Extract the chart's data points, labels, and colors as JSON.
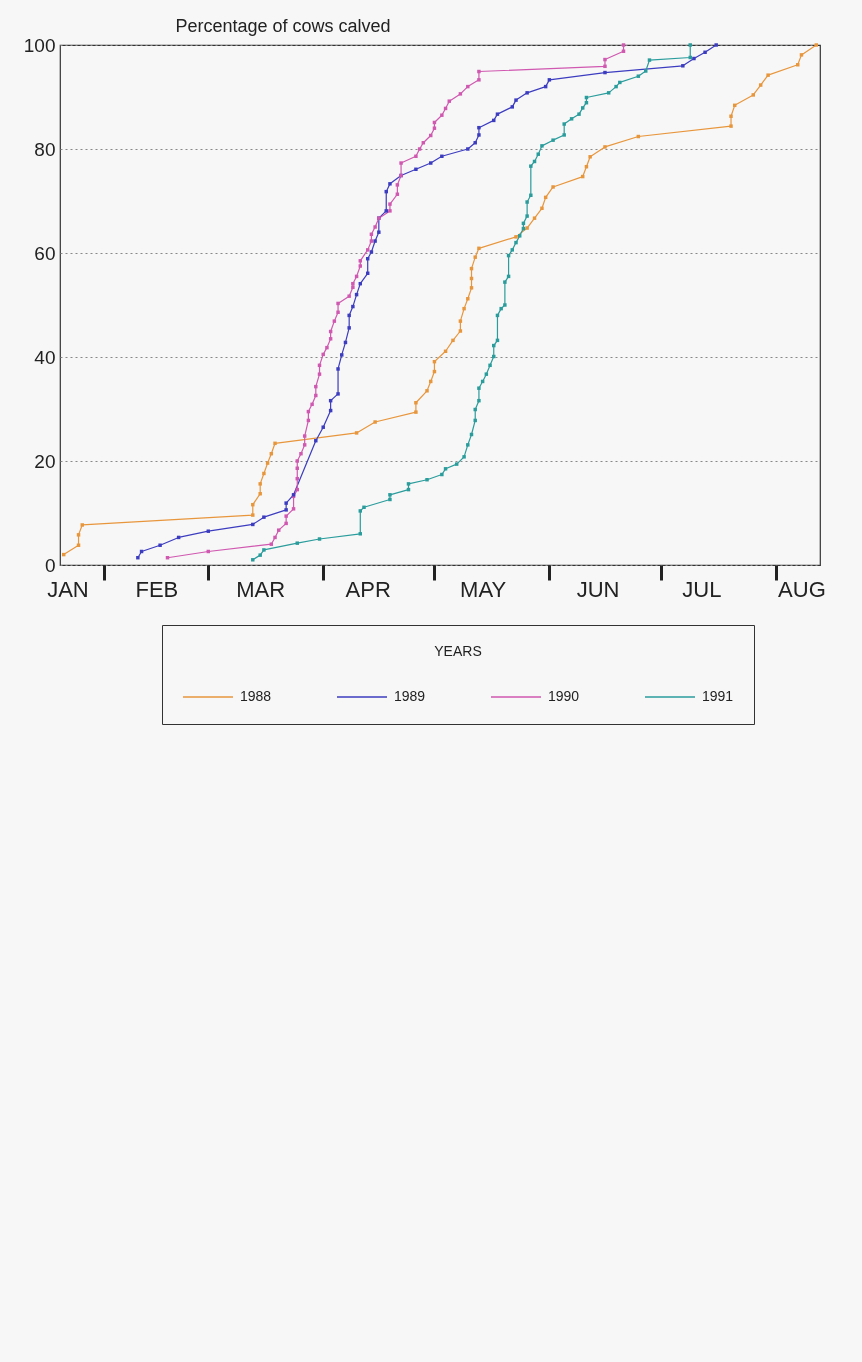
{
  "chart_data": {
    "type": "line",
    "ylabel": "Percentage of cows calved",
    "legend_title": "YEARS",
    "legend": "bottom",
    "grid": "y",
    "marker": "square",
    "line_style": "solid",
    "xlim": [
      "--01-20",
      "--08-13"
    ],
    "xticks": [
      {
        "value": "--01-22",
        "label": "JAN"
      },
      {
        "value": "--02-01",
        "label": null
      },
      {
        "value": "--02-15",
        "label": "FEB"
      },
      {
        "value": "--03-01",
        "label": null
      },
      {
        "value": "--03-15",
        "label": "MAR"
      },
      {
        "value": "--04-01",
        "label": null
      },
      {
        "value": "--04-13",
        "label": "APR"
      },
      {
        "value": "--05-01",
        "label": null
      },
      {
        "value": "--05-14",
        "label": "MAY"
      },
      {
        "value": "--06-01",
        "label": null
      },
      {
        "value": "--06-14",
        "label": "JUN"
      },
      {
        "value": "--07-01",
        "label": null
      },
      {
        "value": "--07-12",
        "label": "JUL"
      },
      {
        "value": "--08-01",
        "label": null
      },
      {
        "value": "--08-08",
        "label": "AUG"
      }
    ],
    "ylim": [
      0,
      100
    ],
    "yticks": [
      0,
      20,
      40,
      60,
      80,
      100
    ],
    "series": [
      {
        "name": "1988",
        "color": "#e8963c",
        "x": [
          "--01-21",
          "--01-25",
          "--01-25",
          "--01-26",
          "--03-13",
          "--03-13",
          "--03-15",
          "--03-15",
          "--03-16",
          "--03-17",
          "--03-18",
          "--03-19",
          "--04-10",
          "--04-15",
          "--04-26",
          "--04-26",
          "--04-29",
          "--04-30",
          "--05-01",
          "--05-01",
          "--05-04",
          "--05-06",
          "--05-08",
          "--05-08",
          "--05-09",
          "--05-10",
          "--05-11",
          "--05-11",
          "--05-11",
          "--05-12",
          "--05-13",
          "--05-23",
          "--05-26",
          "--05-28",
          "--05-30",
          "--05-31",
          "--06-02",
          "--06-10",
          "--06-11",
          "--06-12",
          "--06-16",
          "--06-25",
          "--07-20",
          "--07-20",
          "--07-21",
          "--07-26",
          "--07-28",
          "--07-30",
          "--08-07",
          "--08-08",
          "--08-12"
        ],
        "values": [
          2,
          3.8,
          5.8,
          7.7,
          9.6,
          11.6,
          13.7,
          15.6,
          17.6,
          19.6,
          21.4,
          23.4,
          25.4,
          27.5,
          29.4,
          31.2,
          33.5,
          35.3,
          37.2,
          39.1,
          41.1,
          43.2,
          45,
          46.9,
          49.3,
          51.2,
          53.3,
          55.1,
          57,
          59.2,
          60.9,
          63.1,
          64.8,
          66.7,
          68.6,
          70.7,
          72.7,
          74.7,
          76.6,
          78.5,
          80.4,
          82.4,
          84.4,
          86.3,
          88.4,
          90.4,
          92.3,
          94.2,
          96.2,
          98.1,
          100
        ]
      },
      {
        "name": "1989",
        "color": "#3c3cc0",
        "x": [
          "--02-10",
          "--02-11",
          "--02-16",
          "--02-21",
          "--03-01",
          "--03-13",
          "--03-16",
          "--03-22",
          "--03-22",
          "--03-24",
          "--03-30",
          "--04-01",
          "--04-03",
          "--04-03",
          "--04-05",
          "--04-05",
          "--04-06",
          "--04-07",
          "--04-08",
          "--04-08",
          "--04-09",
          "--04-10",
          "--04-11",
          "--04-13",
          "--04-13",
          "--04-14",
          "--04-15",
          "--04-16",
          "--04-16",
          "--04-18",
          "--04-18",
          "--04-19",
          "--04-22",
          "--04-26",
          "--04-30",
          "--05-03",
          "--05-10",
          "--05-12",
          "--05-13",
          "--05-13",
          "--05-17",
          "--05-18",
          "--05-22",
          "--05-23",
          "--05-26",
          "--05-31",
          "--06-01",
          "--06-16",
          "--07-07",
          "--07-10",
          "--07-13",
          "--07-16"
        ],
        "values": [
          1.4,
          2.6,
          3.8,
          5.3,
          6.5,
          7.8,
          9.2,
          10.6,
          11.9,
          13.5,
          23.9,
          26.5,
          29.7,
          31.6,
          32.9,
          37.7,
          40.4,
          42.8,
          45.6,
          48,
          49.7,
          52,
          54.1,
          56.1,
          58.9,
          60.2,
          62.3,
          64,
          66.7,
          68.1,
          71.8,
          73.3,
          74.9,
          76.1,
          77.3,
          78.6,
          80,
          81.2,
          82.7,
          84.1,
          85.5,
          86.7,
          88.1,
          89.4,
          90.8,
          92,
          93.3,
          94.7,
          96,
          97.4,
          98.6,
          100
        ]
      },
      {
        "name": "1990",
        "color": "#d058b0",
        "x": [
          "--02-18",
          "--03-01",
          "--03-18",
          "--03-19",
          "--03-20",
          "--03-22",
          "--03-22",
          "--03-24",
          "--03-24",
          "--03-25",
          "--03-25",
          "--03-25",
          "--03-25",
          "--03-26",
          "--03-27",
          "--03-27",
          "--03-28",
          "--03-28",
          "--03-29",
          "--03-30",
          "--03-30",
          "--03-31",
          "--03-31",
          "--04-01",
          "--04-02",
          "--04-03",
          "--04-03",
          "--04-04",
          "--04-05",
          "--04-05",
          "--04-08",
          "--04-09",
          "--04-09",
          "--04-10",
          "--04-11",
          "--04-11",
          "--04-13",
          "--04-14",
          "--04-14",
          "--04-15",
          "--04-16",
          "--04-19",
          "--04-19",
          "--04-21",
          "--04-21",
          "--04-22",
          "--04-22",
          "--04-26",
          "--04-27",
          "--04-28",
          "--04-30",
          "--05-01",
          "--05-01",
          "--05-03",
          "--05-04",
          "--05-05",
          "--05-08",
          "--05-10",
          "--05-13",
          "--05-13",
          "--06-16",
          "--06-16",
          "--06-21",
          "--06-21"
        ],
        "values": [
          1.4,
          2.6,
          4,
          5.3,
          6.7,
          8,
          9.4,
          10.8,
          13.2,
          14.5,
          16.6,
          18.6,
          20,
          21.4,
          23.1,
          24.8,
          27.8,
          29.5,
          30.9,
          32.6,
          34.3,
          36.7,
          38.4,
          40.5,
          41.8,
          43.5,
          44.9,
          46.9,
          48.6,
          50.3,
          51.7,
          53.4,
          54.1,
          55.5,
          57.5,
          58.5,
          60.6,
          62.3,
          63.6,
          65,
          66.7,
          68.1,
          69.4,
          71.3,
          73.1,
          74.9,
          77.3,
          78.6,
          80,
          81.2,
          82.6,
          84,
          85.1,
          86.5,
          87.8,
          89.2,
          90.6,
          92,
          93.3,
          94.9,
          95.9,
          97.2,
          98.8,
          100
        ]
      },
      {
        "name": "1991",
        "color": "#2a9c9c",
        "x": [
          "--03-13",
          "--03-15",
          "--03-16",
          "--03-25",
          "--03-31",
          "--04-11",
          "--04-11",
          "--04-12",
          "--04-19",
          "--04-19",
          "--04-24",
          "--04-24",
          "--04-29",
          "--05-03",
          "--05-04",
          "--05-07",
          "--05-09",
          "--05-10",
          "--05-11",
          "--05-12",
          "--05-12",
          "--05-13",
          "--05-13",
          "--05-14",
          "--05-15",
          "--05-16",
          "--05-17",
          "--05-17",
          "--05-18",
          "--05-18",
          "--05-19",
          "--05-20",
          "--05-20",
          "--05-21",
          "--05-21",
          "--05-22",
          "--05-23",
          "--05-24",
          "--05-25",
          "--05-25",
          "--05-26",
          "--05-26",
          "--05-27",
          "--05-27",
          "--05-28",
          "--05-29",
          "--05-30",
          "--06-02",
          "--06-05",
          "--06-05",
          "--06-07",
          "--06-09",
          "--06-10",
          "--06-11",
          "--06-11",
          "--06-17",
          "--06-19",
          "--06-20",
          "--06-25",
          "--06-27",
          "--06-28",
          "--07-09",
          "--07-09"
        ],
        "values": [
          1,
          1.9,
          2.9,
          4.2,
          5,
          6,
          10.4,
          11.1,
          12.6,
          13.5,
          14.5,
          15.6,
          16.4,
          17.4,
          18.5,
          19.4,
          20.8,
          23.1,
          25.1,
          27.8,
          29.9,
          31.6,
          34,
          35.3,
          36.7,
          38.4,
          40.1,
          42.2,
          43.2,
          48,
          49.3,
          50,
          54.4,
          55.5,
          59.5,
          60.6,
          62,
          63.3,
          64.7,
          65.7,
          67.1,
          69.8,
          71.1,
          76.7,
          77.6,
          79,
          80.6,
          81.7,
          82.7,
          84.8,
          85.8,
          86.7,
          87.9,
          88.9,
          89.9,
          90.8,
          92,
          92.8,
          94,
          95,
          97.1,
          97.6,
          100
        ]
      }
    ]
  }
}
